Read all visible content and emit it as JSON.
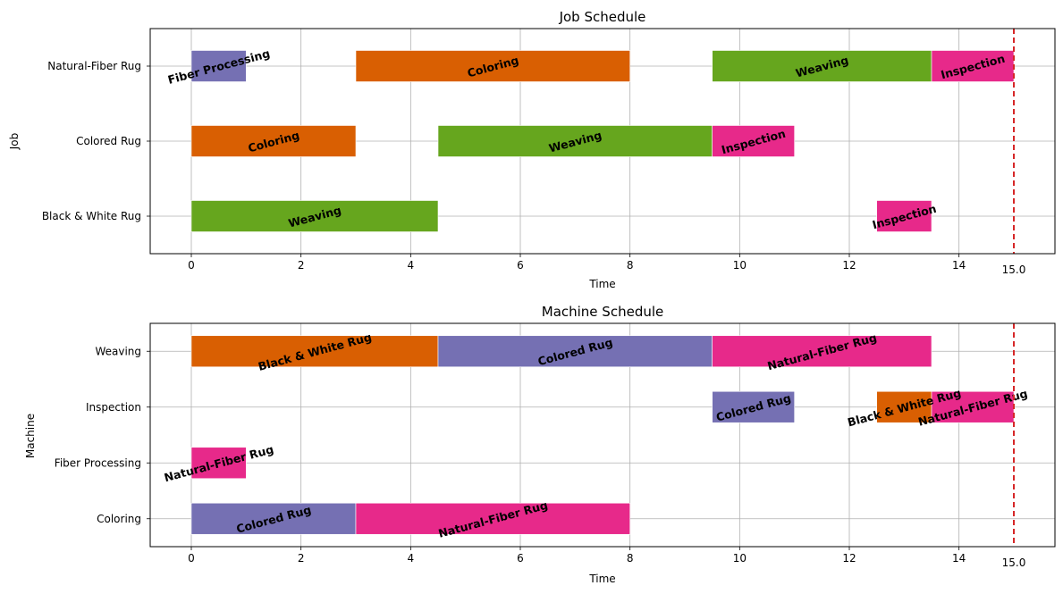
{
  "colors": {
    "fiber_processing": "#7570b3",
    "coloring": "#d95f02",
    "weaving": "#66a61e",
    "inspection": "#e7298a",
    "black_white_rug": "#d95f02",
    "colored_rug": "#7570b3",
    "natural_fiber_rug": "#e7298a",
    "makespan_line": "#d62728",
    "grid": "#b0b0b0"
  },
  "chart_data": [
    {
      "type": "gantt",
      "title": "Job Schedule",
      "xlabel": "Time",
      "ylabel": "Job",
      "xlim": [
        -0.75,
        15.75
      ],
      "xticks": [
        0,
        2,
        4,
        6,
        8,
        10,
        12,
        14
      ],
      "categories": [
        "Natural-Fiber Rug",
        "Colored Rug",
        "Black & White Rug"
      ],
      "grid": true,
      "makespan": 15.0,
      "makespan_label": "15.0",
      "tasks": [
        {
          "row": "Natural-Fiber Rug",
          "start": 0,
          "end": 1,
          "label": "Fiber Processing",
          "color_key": "fiber_processing"
        },
        {
          "row": "Natural-Fiber Rug",
          "start": 3,
          "end": 8,
          "label": "Coloring",
          "color_key": "coloring"
        },
        {
          "row": "Natural-Fiber Rug",
          "start": 9.5,
          "end": 13.5,
          "label": "Weaving",
          "color_key": "weaving"
        },
        {
          "row": "Natural-Fiber Rug",
          "start": 13.5,
          "end": 15,
          "label": "Inspection",
          "color_key": "inspection"
        },
        {
          "row": "Colored Rug",
          "start": 0,
          "end": 3,
          "label": "Coloring",
          "color_key": "coloring"
        },
        {
          "row": "Colored Rug",
          "start": 4.5,
          "end": 9.5,
          "label": "Weaving",
          "color_key": "weaving"
        },
        {
          "row": "Colored Rug",
          "start": 9.5,
          "end": 11,
          "label": "Inspection",
          "color_key": "inspection"
        },
        {
          "row": "Black & White Rug",
          "start": 0,
          "end": 4.5,
          "label": "Weaving",
          "color_key": "weaving"
        },
        {
          "row": "Black & White Rug",
          "start": 12.5,
          "end": 13.5,
          "label": "Inspection",
          "color_key": "inspection"
        }
      ]
    },
    {
      "type": "gantt",
      "title": "Machine Schedule",
      "xlabel": "Time",
      "ylabel": "Machine",
      "xlim": [
        -0.75,
        15.75
      ],
      "xticks": [
        0,
        2,
        4,
        6,
        8,
        10,
        12,
        14
      ],
      "categories": [
        "Weaving",
        "Inspection",
        "Fiber Processing",
        "Coloring"
      ],
      "grid": true,
      "makespan": 15.0,
      "makespan_label": "15.0",
      "tasks": [
        {
          "row": "Weaving",
          "start": 0,
          "end": 4.5,
          "label": "Black & White Rug",
          "color_key": "black_white_rug"
        },
        {
          "row": "Weaving",
          "start": 4.5,
          "end": 9.5,
          "label": "Colored Rug",
          "color_key": "colored_rug"
        },
        {
          "row": "Weaving",
          "start": 9.5,
          "end": 13.5,
          "label": "Natural-Fiber Rug",
          "color_key": "natural_fiber_rug"
        },
        {
          "row": "Inspection",
          "start": 9.5,
          "end": 11,
          "label": "Colored Rug",
          "color_key": "colored_rug"
        },
        {
          "row": "Inspection",
          "start": 12.5,
          "end": 13.5,
          "label": "Black & White Rug",
          "color_key": "black_white_rug"
        },
        {
          "row": "Inspection",
          "start": 13.5,
          "end": 15,
          "label": "Natural-Fiber Rug",
          "color_key": "natural_fiber_rug"
        },
        {
          "row": "Fiber Processing",
          "start": 0,
          "end": 1,
          "label": "Natural-Fiber Rug",
          "color_key": "natural_fiber_rug"
        },
        {
          "row": "Coloring",
          "start": 0,
          "end": 3,
          "label": "Colored Rug",
          "color_key": "colored_rug"
        },
        {
          "row": "Coloring",
          "start": 3,
          "end": 8,
          "label": "Natural-Fiber Rug",
          "color_key": "natural_fiber_rug"
        }
      ]
    }
  ]
}
